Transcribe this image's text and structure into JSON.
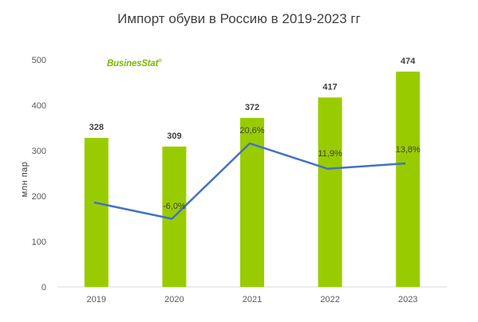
{
  "chart_data": {
    "type": "bar",
    "title": "Импорт обуви в Россию в 2019-2023 гг",
    "ylabel": "млн пар",
    "categories": [
      "2019",
      "2020",
      "2021",
      "2022",
      "2023"
    ],
    "series": [
      {
        "values": [
          328,
          309,
          372,
          417,
          474
        ],
        "value_labels": [
          "328",
          "309",
          "372",
          "417",
          "474"
        ],
        "color": "#99cc00"
      },
      {
        "type": "line",
        "values": [
          null,
          -6.0,
          20.6,
          11.9,
          13.8
        ],
        "labels": [
          "",
          "-6,0%",
          "20,6%",
          "11,9%",
          "13,8%"
        ],
        "points_on_primary_scale": [
          186,
          150,
          316,
          260,
          272
        ],
        "color": "#4472c4"
      }
    ],
    "ylim": [
      0,
      500
    ],
    "yticks": [
      "0",
      "100",
      "200",
      "300",
      "400",
      "500"
    ],
    "grid": false,
    "logo": "BusinesStat"
  }
}
